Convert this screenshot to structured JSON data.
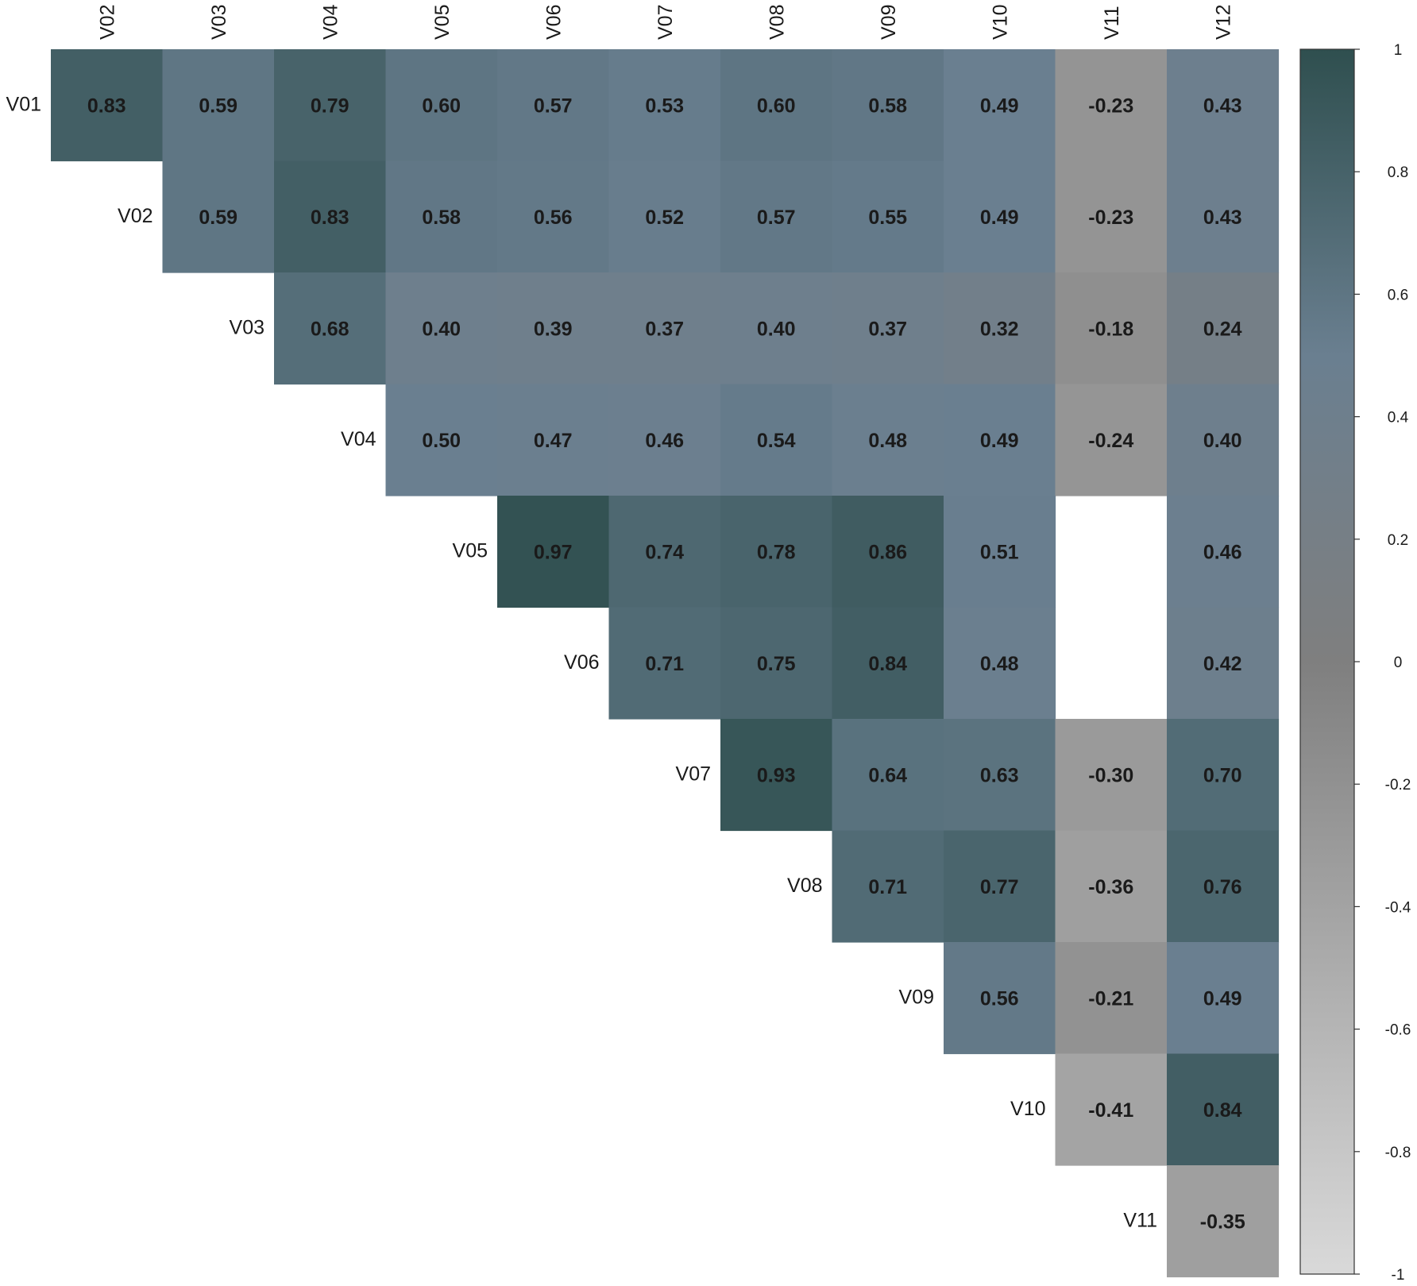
{
  "chart_data": {
    "type": "heatmap",
    "title": "",
    "xlabel": "",
    "ylabel": "",
    "columns": [
      "V02",
      "V03",
      "V04",
      "V05",
      "V06",
      "V07",
      "V08",
      "V09",
      "V10",
      "V11",
      "V12"
    ],
    "rows": [
      "V01",
      "V02",
      "V03",
      "V04",
      "V05",
      "V06",
      "V07",
      "V08",
      "V09",
      "V10",
      "V11"
    ],
    "layout": "upper-triangle",
    "values": [
      [
        "0.83",
        "0.59",
        "0.79",
        "0.60",
        "0.57",
        "0.53",
        "0.60",
        "0.58",
        "0.49",
        "-0.23",
        "0.43"
      ],
      [
        null,
        "0.59",
        "0.83",
        "0.58",
        "0.56",
        "0.52",
        "0.57",
        "0.55",
        "0.49",
        "-0.23",
        "0.43"
      ],
      [
        null,
        null,
        "0.68",
        "0.40",
        "0.39",
        "0.37",
        "0.40",
        "0.37",
        "0.32",
        "-0.18",
        "0.24"
      ],
      [
        null,
        null,
        null,
        "0.50",
        "0.47",
        "0.46",
        "0.54",
        "0.48",
        "0.49",
        "-0.24",
        "0.40"
      ],
      [
        null,
        null,
        null,
        null,
        "0.97",
        "0.74",
        "0.78",
        "0.86",
        "0.51",
        "",
        "0.46"
      ],
      [
        null,
        null,
        null,
        null,
        null,
        "0.71",
        "0.75",
        "0.84",
        "0.48",
        "",
        "0.42"
      ],
      [
        null,
        null,
        null,
        null,
        null,
        null,
        "0.93",
        "0.64",
        "0.63",
        "-0.30",
        "0.70"
      ],
      [
        null,
        null,
        null,
        null,
        null,
        null,
        null,
        "0.71",
        "0.77",
        "-0.36",
        "0.76"
      ],
      [
        null,
        null,
        null,
        null,
        null,
        null,
        null,
        null,
        "0.56",
        "-0.21",
        "0.49"
      ],
      [
        null,
        null,
        null,
        null,
        null,
        null,
        null,
        null,
        null,
        "-0.41",
        "0.84"
      ],
      [
        null,
        null,
        null,
        null,
        null,
        null,
        null,
        null,
        null,
        null,
        "-0.35"
      ]
    ],
    "color_scale": {
      "range": [
        -1,
        1
      ],
      "stops": [
        {
          "value": -1,
          "color": "#d9d9d9"
        },
        {
          "value": 0,
          "color": "#7f7f7f"
        },
        {
          "value": 0.5,
          "color": "#6a7f90"
        },
        {
          "value": 1,
          "color": "#2f4f4f"
        }
      ],
      "ticks": [
        "1",
        "0.8",
        "0.6",
        "0.4",
        "0.2",
        "0",
        "-0.2",
        "-0.4",
        "-0.6",
        "-0.8",
        "-1"
      ]
    },
    "legend": "right"
  }
}
